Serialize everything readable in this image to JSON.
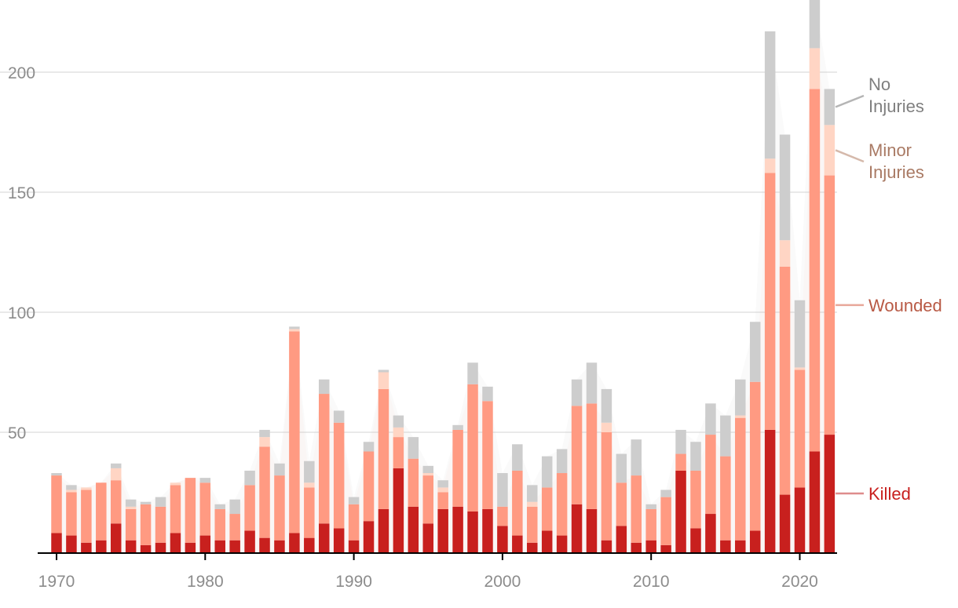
{
  "colors": {
    "killed": "#c8201e",
    "wounded": "#ff9a82",
    "minor": "#ffd5c4",
    "none": "#cdcdcd",
    "grid": "#e2e2e2",
    "tick_text": "#8c8c8c",
    "axis": "#000000",
    "label_none": "#7f7f7f",
    "label_minor": "#a97a64",
    "label_wounded": "#b85944",
    "label_killed": "#c8201e",
    "connector_none": "#b5b5b5",
    "connector_minor": "#d5b9ab",
    "connector_wounded": "#e8a79a",
    "connector_killed": "#de8c8c"
  },
  "chart_data": {
    "type": "bar",
    "stacked": true,
    "title": "",
    "xlabel": "",
    "ylabel": "",
    "ylim": [
      0,
      228
    ],
    "y_ticks": [
      50,
      100,
      150,
      200
    ],
    "x_ticks": [
      1970,
      1980,
      1990,
      2000,
      2010,
      2020
    ],
    "grid": true,
    "legend": "labels at right end of last bar",
    "categories": [
      1970,
      1971,
      1972,
      1973,
      1974,
      1975,
      1976,
      1977,
      1978,
      1979,
      1980,
      1981,
      1982,
      1983,
      1984,
      1985,
      1986,
      1987,
      1988,
      1989,
      1990,
      1991,
      1992,
      1993,
      1994,
      1995,
      1996,
      1997,
      1998,
      1999,
      2000,
      2001,
      2002,
      2003,
      2004,
      2005,
      2006,
      2007,
      2008,
      2009,
      2010,
      2011,
      2012,
      2013,
      2014,
      2015,
      2016,
      2017,
      2018,
      2019,
      2020,
      2021,
      2022
    ],
    "series": [
      {
        "name": "Killed",
        "key": "killed",
        "values": [
          8,
          7,
          4,
          5,
          12,
          5,
          3,
          4,
          8,
          4,
          7,
          5,
          5,
          9,
          6,
          5,
          8,
          6,
          12,
          10,
          5,
          13,
          18,
          35,
          19,
          12,
          18,
          19,
          17,
          18,
          11,
          7,
          4,
          9,
          7,
          20,
          18,
          5,
          11,
          4,
          5,
          3,
          34,
          10,
          16,
          5,
          5,
          9,
          51,
          24,
          27,
          42,
          49
        ]
      },
      {
        "name": "Wounded",
        "key": "wounded",
        "values": [
          24,
          18,
          22,
          24,
          18,
          13,
          17,
          15,
          20,
          27,
          22,
          13,
          11,
          19,
          38,
          27,
          84,
          21,
          54,
          44,
          15,
          29,
          50,
          13,
          20,
          20,
          7,
          32,
          53,
          45,
          8,
          27,
          15,
          18,
          26,
          41,
          44,
          45,
          18,
          28,
          13,
          20,
          7,
          24,
          33,
          35,
          51,
          62,
          107,
          95,
          49,
          151,
          108
        ]
      },
      {
        "name": "Minor Injuries",
        "key": "minor",
        "values": [
          0,
          1,
          1,
          0,
          5,
          1,
          0,
          0,
          1,
          0,
          0,
          0,
          0,
          0,
          4,
          0,
          1,
          2,
          0,
          0,
          0,
          0,
          7,
          4,
          0,
          1,
          2,
          0,
          0,
          0,
          0,
          0,
          2,
          0,
          0,
          0,
          0,
          4,
          0,
          0,
          0,
          0,
          0,
          0,
          0,
          0,
          1,
          0,
          6,
          11,
          1,
          17,
          21
        ]
      },
      {
        "name": "No Injuries",
        "key": "none",
        "values": [
          1,
          2,
          0,
          0,
          2,
          3,
          1,
          4,
          0,
          0,
          2,
          2,
          6,
          6,
          3,
          5,
          1,
          9,
          6,
          5,
          3,
          4,
          1,
          5,
          9,
          3,
          3,
          2,
          9,
          6,
          14,
          11,
          7,
          13,
          10,
          11,
          17,
          14,
          12,
          15,
          2,
          3,
          10,
          12,
          13,
          17,
          15,
          25,
          53,
          44,
          28,
          21,
          15
        ]
      }
    ],
    "series_labels": {
      "none": [
        "No",
        "Injuries"
      ],
      "minor": [
        "Minor",
        "Injuries"
      ],
      "wounded": "Wounded",
      "killed": "Killed"
    }
  }
}
